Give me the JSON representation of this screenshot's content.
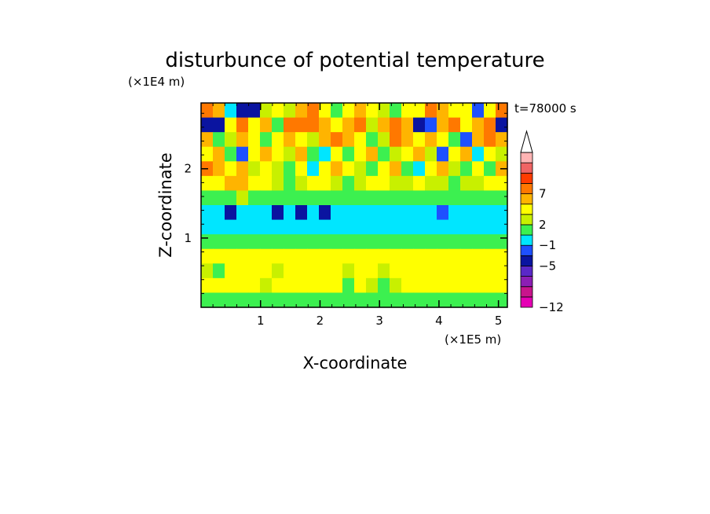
{
  "chart_data": {
    "type": "heatmap",
    "title": "disturbunce of potential temperature",
    "xlabel": "X-coordinate",
    "ylabel": "Z-coordinate",
    "x_unit": "(×1E5 m)",
    "y_unit": "(×1E4 m)",
    "time_label": "t=78000 s",
    "xlim": [
      0,
      5.15
    ],
    "ylim": [
      0,
      2.95
    ],
    "x_ticks": [
      {
        "value": 1,
        "label": "1"
      },
      {
        "value": 2,
        "label": "2"
      },
      {
        "value": 3,
        "label": "3"
      },
      {
        "value": 4,
        "label": "4"
      },
      {
        "value": 5,
        "label": "5"
      }
    ],
    "y_ticks": [
      {
        "value": 1,
        "label": "1"
      },
      {
        "value": 2,
        "label": "2"
      }
    ],
    "colorbar": {
      "levels": [
        {
          "color": "#e600b4"
        },
        {
          "color": "#c8148c"
        },
        {
          "color": "#8c1eb4"
        },
        {
          "color": "#5a28c8"
        },
        {
          "color": "#0a14a0"
        },
        {
          "color": "#1e50ff"
        },
        {
          "color": "#00e6ff"
        },
        {
          "color": "#3cf050"
        },
        {
          "color": "#c8f000"
        },
        {
          "color": "#ffff00"
        },
        {
          "color": "#ffb400"
        },
        {
          "color": "#ff7800"
        },
        {
          "color": "#ff3c00"
        },
        {
          "color": "#f06464"
        },
        {
          "color": "#ffb4b4"
        }
      ],
      "labels": [
        "-12",
        "-5",
        "-1",
        "2",
        "7"
      ],
      "extend": "max"
    },
    "field": {
      "rows": 14,
      "cols": 26,
      "row_order": "top-to-bottom",
      "level_index": [
        [
          11,
          10,
          6,
          4,
          4,
          8,
          9,
          8,
          10,
          11,
          9,
          7,
          9,
          10,
          9,
          8,
          7,
          9,
          9,
          11,
          10,
          9,
          9,
          5,
          9,
          11
        ],
        [
          4,
          4,
          9,
          11,
          9,
          10,
          7,
          11,
          11,
          11,
          10,
          9,
          10,
          11,
          8,
          10,
          11,
          10,
          4,
          5,
          10,
          11,
          9,
          10,
          11,
          4
        ],
        [
          10,
          7,
          8,
          10,
          9,
          7,
          9,
          10,
          9,
          8,
          10,
          11,
          10,
          9,
          7,
          8,
          11,
          10,
          9,
          10,
          9,
          7,
          5,
          10,
          11,
          10
        ],
        [
          9,
          10,
          7,
          5,
          9,
          10,
          9,
          8,
          10,
          7,
          6,
          9,
          7,
          9,
          10,
          7,
          8,
          9,
          10,
          8,
          5,
          9,
          10,
          6,
          9,
          8
        ],
        [
          11,
          10,
          9,
          10,
          8,
          9,
          8,
          7,
          9,
          6,
          9,
          10,
          9,
          8,
          7,
          9,
          10,
          7,
          6,
          9,
          10,
          8,
          7,
          9,
          7,
          10
        ],
        [
          9,
          9,
          10,
          10,
          9,
          9,
          8,
          7,
          8,
          9,
          9,
          8,
          7,
          8,
          9,
          9,
          8,
          8,
          9,
          8,
          8,
          7,
          8,
          8,
          9,
          9
        ],
        [
          7,
          7,
          7,
          8,
          7,
          7,
          7,
          7,
          7,
          7,
          7,
          7,
          7,
          7,
          7,
          7,
          7,
          7,
          7,
          7,
          7,
          7,
          7,
          7,
          7,
          7
        ],
        [
          6,
          6,
          4,
          6,
          6,
          6,
          4,
          6,
          4,
          6,
          4,
          6,
          6,
          6,
          6,
          6,
          6,
          6,
          6,
          6,
          5,
          6,
          6,
          6,
          6,
          6
        ],
        [
          6,
          6,
          6,
          6,
          6,
          6,
          6,
          6,
          6,
          6,
          6,
          6,
          6,
          6,
          6,
          6,
          6,
          6,
          6,
          6,
          6,
          6,
          6,
          6,
          6,
          6
        ],
        [
          7,
          7,
          7,
          7,
          7,
          7,
          7,
          7,
          7,
          7,
          7,
          7,
          7,
          7,
          7,
          7,
          7,
          7,
          7,
          7,
          7,
          7,
          7,
          7,
          7,
          7
        ],
        [
          9,
          9,
          9,
          9,
          9,
          9,
          9,
          9,
          9,
          9,
          9,
          9,
          9,
          9,
          9,
          9,
          9,
          9,
          9,
          9,
          9,
          9,
          9,
          9,
          9,
          9
        ],
        [
          8,
          7,
          9,
          9,
          9,
          9,
          8,
          9,
          9,
          9,
          9,
          9,
          8,
          9,
          9,
          8,
          9,
          9,
          9,
          9,
          9,
          9,
          9,
          9,
          9,
          9
        ],
        [
          9,
          9,
          9,
          9,
          9,
          8,
          9,
          9,
          9,
          9,
          9,
          9,
          7,
          9,
          8,
          7,
          8,
          9,
          9,
          9,
          9,
          9,
          9,
          9,
          9,
          9
        ],
        [
          7,
          7,
          7,
          7,
          7,
          7,
          7,
          7,
          7,
          7,
          7,
          7,
          7,
          7,
          7,
          7,
          7,
          7,
          7,
          7,
          7,
          7,
          7,
          7,
          7,
          7
        ]
      ]
    }
  }
}
